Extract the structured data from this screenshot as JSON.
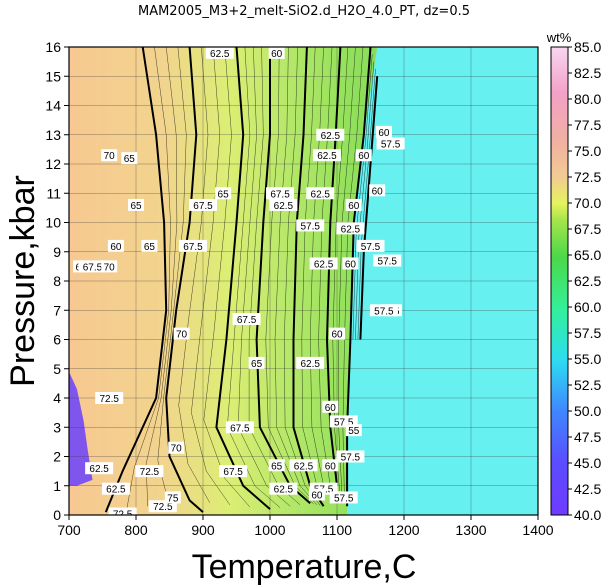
{
  "chart_data": {
    "type": "contour",
    "title": "MAM2005_M3+2_melt-SiO2.d_H2O_4.0_PT, dz=0.5",
    "xlabel": "Temperature,C",
    "ylabel": "Pressure,kbar",
    "xlim": [
      700,
      1400
    ],
    "ylim": [
      0,
      16
    ],
    "x_ticks": [
      "700",
      "800",
      "900",
      "1000",
      "1100",
      "1200",
      "1300",
      "1400"
    ],
    "y_ticks": [
      "0",
      "1",
      "2",
      "3",
      "4",
      "5",
      "6",
      "7",
      "8",
      "9",
      "10",
      "11",
      "12",
      "13",
      "14",
      "15",
      "16"
    ],
    "grid": true,
    "colorbar": {
      "unit": "wt%",
      "min": 40.0,
      "max": 85.0,
      "ticks": [
        "40.0",
        "42.5",
        "45.0",
        "47.5",
        "50.0",
        "52.5",
        "55.0",
        "57.5",
        "60.0",
        "62.5",
        "65.0",
        "67.5",
        "70.0",
        "72.5",
        "75.0",
        "77.5",
        "80.0",
        "82.5",
        "85.0"
      ]
    },
    "regions": [
      {
        "value": 40.0,
        "color": "#7f55ee",
        "note": "low-T, low-P"
      },
      {
        "value": 57.5,
        "color": "#66f0f0",
        "note": "high-T field"
      }
    ],
    "contours": [
      {
        "label": "72.5",
        "points": [
          [
            810,
            16
          ],
          [
            830,
            13
          ],
          [
            842,
            10
          ],
          [
            845,
            7
          ],
          [
            830,
            4
          ],
          [
            780,
            1.5
          ],
          [
            755,
            0.1
          ]
        ]
      },
      {
        "label": "70",
        "points": [
          [
            880,
            16
          ],
          [
            890,
            13
          ],
          [
            880,
            10
          ],
          [
            860,
            7
          ],
          [
            845,
            4
          ],
          [
            850,
            2
          ],
          [
            880,
            0.5
          ],
          [
            900,
            0.1
          ]
        ]
      },
      {
        "label": "67.5",
        "points": [
          [
            950,
            16
          ],
          [
            960,
            13
          ],
          [
            950,
            10
          ],
          [
            935,
            6
          ],
          [
            920,
            3
          ],
          [
            960,
            1
          ],
          [
            1000,
            0.2
          ]
        ]
      },
      {
        "label": "65",
        "points": [
          [
            1000,
            16
          ],
          [
            1000,
            13
          ],
          [
            990,
            10
          ],
          [
            980,
            6
          ],
          [
            985,
            3
          ],
          [
            1030,
            1
          ],
          [
            1060,
            0.4
          ]
        ]
      },
      {
        "label": "62.5",
        "points": [
          [
            1055,
            16
          ],
          [
            1050,
            13
          ],
          [
            1040,
            10
          ],
          [
            1035,
            6
          ],
          [
            1035,
            3
          ],
          [
            1060,
            1
          ],
          [
            1080,
            0.3
          ]
        ]
      },
      {
        "label": "60",
        "points": [
          [
            1105,
            16
          ],
          [
            1098,
            13
          ],
          [
            1090,
            10
          ],
          [
            1085,
            6
          ],
          [
            1090,
            3
          ],
          [
            1100,
            1
          ]
        ]
      },
      {
        "label": "57.5",
        "points": [
          [
            1150,
            16
          ],
          [
            1140,
            13
          ],
          [
            1125,
            10
          ],
          [
            1120,
            6
          ],
          [
            1115,
            3
          ],
          [
            1115,
            0.3
          ]
        ]
      },
      {
        "label": "55",
        "points": [
          [
            1160,
            15
          ],
          [
            1150,
            12
          ],
          [
            1140,
            9
          ],
          [
            1135,
            6
          ]
        ]
      }
    ],
    "contour_labels": [
      {
        "text": "62.5",
        "x": 925,
        "y": 15.8
      },
      {
        "text": "60",
        "x": 1010,
        "y": 15.8
      },
      {
        "text": "62.5",
        "x": 1090,
        "y": 13.0
      },
      {
        "text": "60",
        "x": 1170,
        "y": 13.1
      },
      {
        "text": "57.5",
        "x": 1180,
        "y": 12.7
      },
      {
        "text": "60",
        "x": 1140,
        "y": 12.3
      },
      {
        "text": "62.5",
        "x": 1085,
        "y": 12.3
      },
      {
        "text": "70",
        "x": 760,
        "y": 12.3
      },
      {
        "text": "65",
        "x": 790,
        "y": 12.2
      },
      {
        "text": "65",
        "x": 930,
        "y": 11.0
      },
      {
        "text": "67.5",
        "x": 1015,
        "y": 11.0
      },
      {
        "text": "62.5",
        "x": 1075,
        "y": 11.0
      },
      {
        "text": "60",
        "x": 1160,
        "y": 11.1
      },
      {
        "text": "65",
        "x": 800,
        "y": 10.6
      },
      {
        "text": "67.5",
        "x": 900,
        "y": 10.6
      },
      {
        "text": "62.5",
        "x": 1020,
        "y": 10.6
      },
      {
        "text": "60",
        "x": 1125,
        "y": 10.6
      },
      {
        "text": "57.5",
        "x": 1060,
        "y": 9.9
      },
      {
        "text": "62.5",
        "x": 1120,
        "y": 9.8
      },
      {
        "text": "60",
        "x": 770,
        "y": 9.2
      },
      {
        "text": "65",
        "x": 820,
        "y": 9.2
      },
      {
        "text": "67.5",
        "x": 885,
        "y": 9.2
      },
      {
        "text": "57.5",
        "x": 1150,
        "y": 9.2
      },
      {
        "text": "57.5",
        "x": 1175,
        "y": 8.7
      },
      {
        "text": "62.5",
        "x": 1080,
        "y": 8.6
      },
      {
        "text": "60",
        "x": 1120,
        "y": 8.6
      },
      {
        "text": "65",
        "x": 718,
        "y": 8.5
      },
      {
        "text": "67.5",
        "x": 735,
        "y": 8.5
      },
      {
        "text": "70",
        "x": 760,
        "y": 8.5
      },
      {
        "text": "55",
        "x": 1185,
        "y": 7.0
      },
      {
        "text": "57.5",
        "x": 1170,
        "y": 7.0
      },
      {
        "text": "60",
        "x": 1100,
        "y": 6.2
      },
      {
        "text": "70",
        "x": 868,
        "y": 6.2
      },
      {
        "text": "67.5",
        "x": 965,
        "y": 6.7
      },
      {
        "text": "65",
        "x": 980,
        "y": 5.2
      },
      {
        "text": "62.5",
        "x": 1060,
        "y": 5.2
      },
      {
        "text": "72.5",
        "x": 760,
        "y": 4.0
      },
      {
        "text": "60",
        "x": 1090,
        "y": 3.7
      },
      {
        "text": "57.5",
        "x": 1110,
        "y": 3.2
      },
      {
        "text": "55",
        "x": 1125,
        "y": 2.9
      },
      {
        "text": "67.5",
        "x": 955,
        "y": 3.0
      },
      {
        "text": "70",
        "x": 860,
        "y": 2.3
      },
      {
        "text": "57.5",
        "x": 1120,
        "y": 2.0
      },
      {
        "text": "60",
        "x": 1090,
        "y": 1.7
      },
      {
        "text": "62.5",
        "x": 1050,
        "y": 1.7
      },
      {
        "text": "65",
        "x": 1010,
        "y": 1.7
      },
      {
        "text": "67.5",
        "x": 945,
        "y": 1.5
      },
      {
        "text": "72.5",
        "x": 820,
        "y": 1.5
      },
      {
        "text": "62.5",
        "x": 745,
        "y": 1.6
      },
      {
        "text": "62.5",
        "x": 770,
        "y": 0.9
      },
      {
        "text": "57.5",
        "x": 1080,
        "y": 0.9
      },
      {
        "text": "60",
        "x": 1070,
        "y": 0.7
      },
      {
        "text": "62.5",
        "x": 1020,
        "y": 0.9
      },
      {
        "text": "57.5",
        "x": 1110,
        "y": 0.6
      },
      {
        "text": "72.5",
        "x": 780,
        "y": 0.05
      },
      {
        "text": "72.5",
        "x": 840,
        "y": 0.3
      },
      {
        "text": "75",
        "x": 855,
        "y": 0.6
      }
    ]
  }
}
